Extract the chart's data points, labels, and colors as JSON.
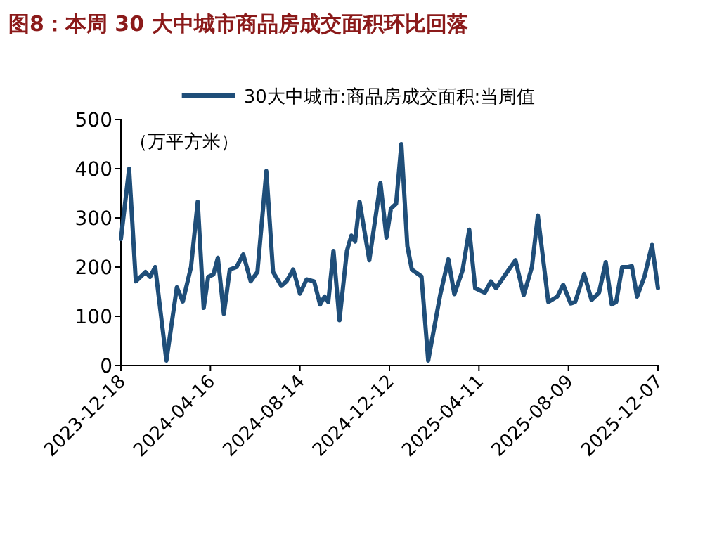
{
  "chart_data": {
    "type": "line",
    "title": "图8：本周 30 大中城市商品房成交面积环比回落",
    "ylabel": "（万平方米）",
    "legend": "top",
    "grid": false,
    "x": [
      "2023-12-18",
      "2023-12-29",
      "2024-01-07",
      "2024-01-20",
      "2024-01-26",
      "2024-02-02",
      "2024-02-17",
      "2024-03-02",
      "2024-03-10",
      "2024-03-21",
      "2024-03-30",
      "2024-04-07",
      "2024-04-13",
      "2024-04-20",
      "2024-04-26",
      "2024-05-04",
      "2024-05-12",
      "2024-05-21",
      "2024-05-30",
      "2024-06-09",
      "2024-06-18",
      "2024-06-30",
      "2024-07-09",
      "2024-07-20",
      "2024-07-27",
      "2024-08-05",
      "2024-08-14",
      "2024-08-23",
      "2024-09-02",
      "2024-09-10",
      "2024-09-16",
      "2024-09-21",
      "2024-09-28",
      "2024-10-06",
      "2024-10-16",
      "2024-10-22",
      "2024-10-27",
      "2024-11-02",
      "2024-11-15",
      "2024-11-30",
      "2024-12-08",
      "2024-12-14",
      "2024-12-21",
      "2024-12-28",
      "2025-01-05",
      "2025-01-11",
      "2025-01-24",
      "2025-02-02",
      "2025-02-18",
      "2025-03-01",
      "2025-03-09",
      "2025-03-20",
      "2025-03-29",
      "2025-04-06",
      "2025-04-19",
      "2025-04-27",
      "2025-05-04",
      "2025-05-17",
      "2025-05-30",
      "2025-06-10",
      "2025-06-21",
      "2025-06-29",
      "2025-07-13",
      "2025-07-25",
      "2025-08-02",
      "2025-08-12",
      "2025-08-18",
      "2025-08-30",
      "2025-09-09",
      "2025-09-19",
      "2025-09-28",
      "2025-10-06",
      "2025-10-12",
      "2025-10-20",
      "2025-10-28",
      "2025-11-02",
      "2025-11-09",
      "2025-11-19",
      "2025-11-29",
      "2025-12-07"
    ],
    "series": [
      {
        "name": "30大中城市:商品房成交面积:当周值",
        "color": "#1f4e79",
        "values": [
          257,
          400,
          171,
          190,
          180,
          200,
          10,
          159,
          130,
          200,
          333,
          117,
          180,
          185,
          219,
          105,
          195,
          200,
          226,
          171,
          190,
          395,
          190,
          162,
          171,
          195,
          146,
          175,
          171,
          124,
          140,
          129,
          233,
          92,
          233,
          264,
          252,
          333,
          214,
          371,
          260,
          319,
          329,
          450,
          243,
          195,
          181,
          10,
          143,
          216,
          145,
          193,
          276,
          157,
          148,
          171,
          157,
          186,
          214,
          143,
          200,
          305,
          129,
          140,
          164,
          126,
          129,
          186,
          133,
          148,
          210,
          124,
          129,
          200,
          200,
          202,
          140,
          181,
          245,
          157
        ]
      }
    ],
    "xlim": [
      "2023-12-18",
      "2025-12-07"
    ],
    "xticks": [
      "2023-12-18",
      "2024-04-16",
      "2024-08-14",
      "2024-12-12",
      "2025-04-11",
      "2025-08-09",
      "2025-12-07"
    ],
    "ylim": [
      0,
      500
    ],
    "yticks": [
      0,
      100,
      200,
      300,
      400,
      500
    ]
  }
}
